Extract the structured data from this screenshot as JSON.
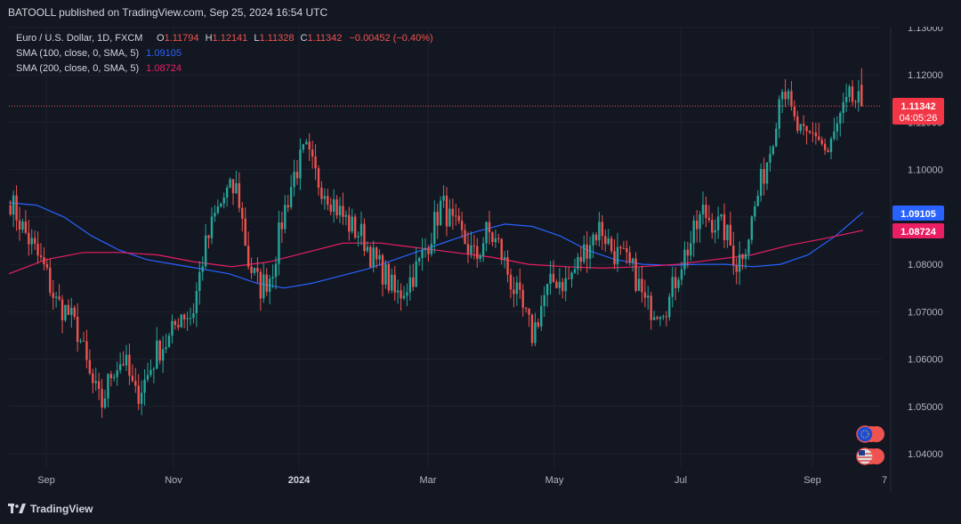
{
  "header": {
    "published": "BATOOLL published on TradingView.com, Sep 25, 2024 16:54 UTC"
  },
  "legend": {
    "symbol": "Euro / U.S. Dollar, 1D, FXCM",
    "o_label": "O",
    "o": "1.11794",
    "h_label": "H",
    "h": "1.12141",
    "l_label": "L",
    "l": "1.11328",
    "c_label": "C",
    "c": "1.11342",
    "change": "−0.00452 (−0.40%)",
    "sma100_label": "SMA (100, close, 0, SMA, 5)",
    "sma100_value": "1.09105",
    "sma200_label": "SMA (200, close, 0, SMA, 5)",
    "sma200_value": "1.08724"
  },
  "price_tag": {
    "price": "1.11342",
    "countdown": "04:05:26"
  },
  "sma_tags": {
    "sma100": "1.09105",
    "sma200": "1.08724"
  },
  "footer": {
    "brand": "TradingView"
  },
  "colors": {
    "up": "#26a69a",
    "down": "#ef5350",
    "sma100": "#2962ff",
    "sma200": "#e91e63",
    "bg": "#131722",
    "grid": "#1e222d",
    "text": "#b2b5be"
  },
  "chart_data": {
    "type": "candlestick",
    "symbol": "EUR/USD",
    "interval": "1D",
    "ylim": [
      1.035,
      1.131
    ],
    "yticks": [
      "1.13000",
      "1.12000",
      "1.11000",
      "1.10000",
      "1.09000",
      "1.08000",
      "1.07000",
      "1.06000",
      "1.05000",
      "1.04000"
    ],
    "xticks": [
      "Sep",
      "Nov",
      "2024",
      "Mar",
      "May",
      "Jul",
      "Sep",
      "7"
    ],
    "close_keypoints": [
      1.0935,
      1.088,
      1.0835,
      1.079,
      1.072,
      1.07,
      1.0655,
      1.056,
      1.05,
      1.058,
      1.06,
      1.052,
      1.056,
      1.062,
      1.064,
      1.07,
      1.069,
      1.082,
      1.09,
      1.095,
      1.096,
      1.08,
      1.075,
      1.078,
      1.09,
      1.099,
      1.104,
      1.098,
      1.095,
      1.091,
      1.088,
      1.086,
      1.081,
      1.078,
      1.073,
      1.076,
      1.08,
      1.086,
      1.093,
      1.088,
      1.085,
      1.081,
      1.087,
      1.084,
      1.077,
      1.071,
      1.065,
      1.073,
      1.077,
      1.076,
      1.08,
      1.085,
      1.088,
      1.083,
      1.081,
      1.078,
      1.071,
      1.071,
      1.072,
      1.08,
      1.085,
      1.091,
      1.089,
      1.087,
      1.08,
      1.086,
      1.096,
      1.105,
      1.119,
      1.11,
      1.106,
      1.108,
      1.103,
      1.11,
      1.115,
      1.1134
    ],
    "last": {
      "open": 1.11794,
      "high": 1.12141,
      "low": 1.11328,
      "close": 1.11342
    },
    "series": [
      {
        "name": "SMA (100, close, 0, SMA, 5)",
        "values_keypoints": [
          1.093,
          1.0925,
          1.09,
          1.086,
          1.083,
          1.081,
          1.08,
          1.079,
          1.078,
          1.076,
          1.075,
          1.076,
          1.0775,
          1.079,
          1.081,
          1.083,
          1.085,
          1.087,
          1.0885,
          1.088,
          1.086,
          1.083,
          1.081,
          1.08,
          1.0798,
          1.08,
          1.08,
          1.0795,
          1.08,
          1.082,
          1.086,
          1.091
        ]
      },
      {
        "name": "SMA (200, close, 0, SMA, 5)",
        "values_keypoints": [
          1.078,
          1.081,
          1.0825,
          1.0825,
          1.082,
          1.0805,
          1.0795,
          1.0805,
          1.0825,
          1.0845,
          1.0845,
          1.0835,
          1.0825,
          1.0815,
          1.08,
          1.0795,
          1.0792,
          1.0795,
          1.08,
          1.081,
          1.082,
          1.084,
          1.0855,
          1.0872
        ]
      }
    ],
    "horizontal_line": 1.11342
  }
}
